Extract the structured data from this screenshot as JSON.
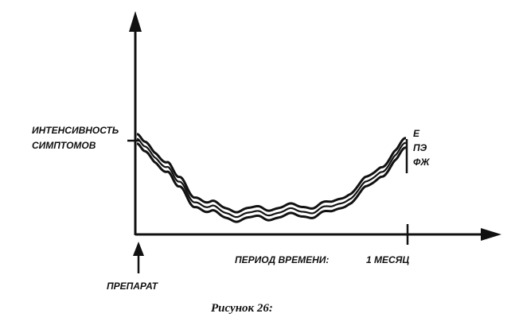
{
  "diagram": {
    "y_label_line1": "ИНТЕНСИВНОСТЬ",
    "y_label_line2": "СИМПТОМОВ",
    "x_label": "ПЕРИОД ВРЕМЕНИ:",
    "x_marker_label": "1 МЕСЯЦ",
    "start_label": "ПРЕПАРАТ",
    "legend": [
      "Е",
      "ПЭ",
      "ФЖ"
    ],
    "caption": "Рисунок 26:"
  }
}
